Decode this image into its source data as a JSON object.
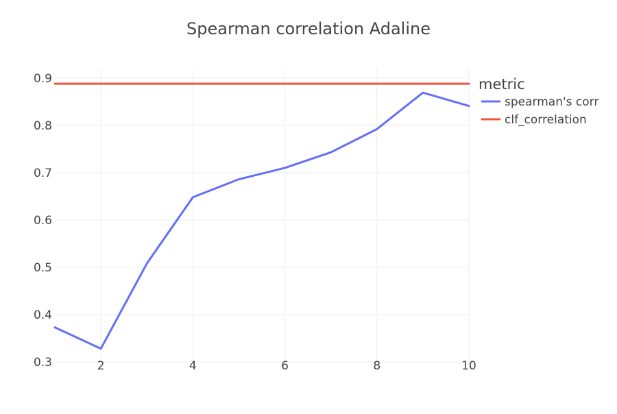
{
  "chart_data": {
    "type": "line",
    "title": "Spearman correlation Adaline",
    "xlabel": "",
    "ylabel": "",
    "xlim": [
      1,
      10
    ],
    "ylim": [
      0.3,
      0.92
    ],
    "x_ticks": [
      2,
      4,
      6,
      8,
      10
    ],
    "y_ticks": [
      0.3,
      0.4,
      0.5,
      0.6,
      0.7,
      0.8,
      0.9
    ],
    "x_tick_labels": [
      "2",
      "4",
      "6",
      "8",
      "10"
    ],
    "y_tick_labels": [
      "0.3",
      "0.4",
      "0.5",
      "0.6",
      "0.7",
      "0.8",
      "0.9"
    ],
    "grid": true,
    "legend": {
      "title": "metric",
      "position": "top-right-outside"
    },
    "series": [
      {
        "name": "spearman's corr",
        "color": "#636efa",
        "x": [
          1,
          2,
          3,
          4,
          5,
          6,
          7,
          8,
          9,
          10
        ],
        "y": [
          0.373,
          0.328,
          0.508,
          0.648,
          0.686,
          0.71,
          0.743,
          0.792,
          0.869,
          0.841
        ]
      },
      {
        "name": "clf_correlation",
        "color": "#ef553b",
        "x": [
          1,
          10
        ],
        "y": [
          0.888,
          0.888
        ]
      }
    ]
  }
}
